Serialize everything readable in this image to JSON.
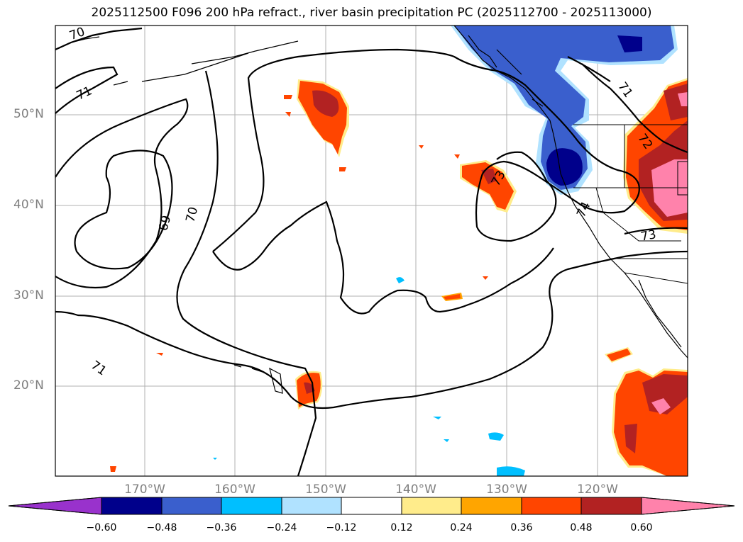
{
  "title": "2025112500 F096 200 hPa refract., river basin precipitation PC (2025112700 - 2025113000)",
  "lat_labels": [
    "50°N",
    "40°N",
    "30°N",
    "20°N"
  ],
  "lon_labels": [
    "170°W",
    "160°W",
    "150°W",
    "140°W",
    "130°W",
    "120°W"
  ],
  "contour_labels": [
    "70",
    "71",
    "69",
    "70",
    "71",
    "73",
    "71",
    "72",
    "74",
    "73"
  ],
  "colorbar": {
    "ticks": [
      "−0.60",
      "−0.48",
      "−0.36",
      "−0.24",
      "−0.12",
      "0.12",
      "0.24",
      "0.36",
      "0.48",
      "0.60"
    ],
    "colors": [
      "#9932cc",
      "#00008b",
      "#3a5fcd",
      "#00bfff",
      "#b0e2ff",
      "#ffffff",
      "#ffec8b",
      "#ffa500",
      "#ff4500",
      "#b22222",
      "#ff82ab"
    ]
  }
}
